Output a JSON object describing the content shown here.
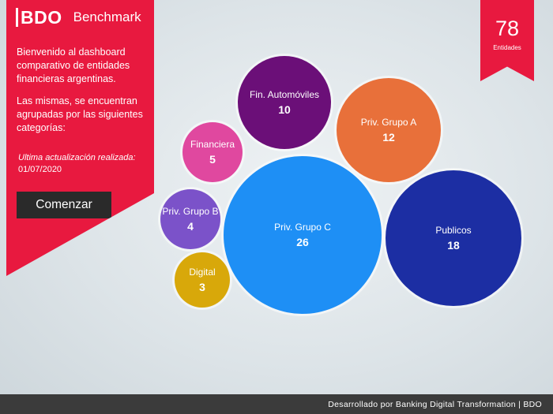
{
  "brand": {
    "logo": "BDO",
    "title": "Benchmark"
  },
  "intro": {
    "p1": "Bienvenido al dashboard comparativo de entidades financieras argentinas.",
    "p2": "Las mismas, se encuentran agrupadas por las siguientes categorías:",
    "update_label": "Ultima actualización realizada:",
    "update_date": "01/07/2020",
    "button": "Comenzar"
  },
  "ribbon": {
    "count": "78",
    "label": "Entidades"
  },
  "categories": [
    {
      "label": "Fin. Automóviles",
      "value": "10",
      "color": "#6b0f78"
    },
    {
      "label": "Priv. Grupo A",
      "value": "12",
      "color": "#e8703a"
    },
    {
      "label": "Financiera",
      "value": "5",
      "color": "#e0489f"
    },
    {
      "label": "Priv. Grupo B",
      "value": "4",
      "color": "#7b52c9"
    },
    {
      "label": "Priv. Grupo C",
      "value": "26",
      "color": "#1e8ff5"
    },
    {
      "label": "Publicos",
      "value": "18",
      "color": "#1c2ea3"
    },
    {
      "label": "Digital",
      "value": "3",
      "color": "#d8a80a"
    }
  ],
  "footer": "Desarrollado por Banking Digital Transformation | BDO"
}
